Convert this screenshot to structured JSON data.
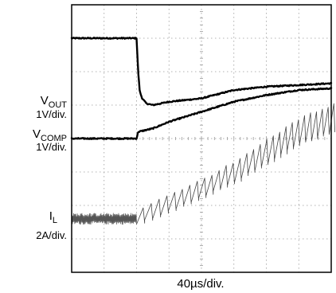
{
  "chart_data": {
    "type": "line",
    "title": "",
    "xlabel": "40µs/div.",
    "ylabel": "",
    "grid": true,
    "x_divisions": 8,
    "y_divisions": 8,
    "x_unit": "µs",
    "x_per_div": 40,
    "xlim": [
      0,
      320
    ],
    "ylim": [
      0,
      8
    ],
    "step_time_us": 80,
    "channels": [
      {
        "key": "vout",
        "label_main": "V",
        "label_sub": "OUT",
        "scale": "1V/div.",
        "points": [
          [
            0,
            7.0
          ],
          [
            78,
            7.0
          ],
          [
            80,
            7.0
          ],
          [
            82,
            6.0
          ],
          [
            84,
            5.4
          ],
          [
            87,
            5.2
          ],
          [
            92,
            5.05
          ],
          [
            100,
            5.0
          ],
          [
            120,
            5.1
          ],
          [
            160,
            5.2
          ],
          [
            200,
            5.45
          ],
          [
            240,
            5.55
          ],
          [
            280,
            5.6
          ],
          [
            320,
            5.65
          ]
        ]
      },
      {
        "key": "vcomp",
        "label_main": "V",
        "label_sub": "COMP",
        "scale": "1V/div.",
        "points": [
          [
            0,
            4.0
          ],
          [
            80,
            4.0
          ],
          [
            82,
            4.2
          ],
          [
            100,
            4.3
          ],
          [
            120,
            4.5
          ],
          [
            160,
            4.8
          ],
          [
            200,
            5.1
          ],
          [
            240,
            5.3
          ],
          [
            280,
            5.45
          ],
          [
            320,
            5.5
          ]
        ]
      },
      {
        "key": "il",
        "label_main": "I",
        "label_sub": "L",
        "scale": "2A/div.",
        "baseline_points": [
          [
            0,
            1.6
          ],
          [
            80,
            1.6
          ]
        ],
        "ripple_base_points": [
          [
            80,
            1.7
          ],
          [
            120,
            2.1
          ],
          [
            160,
            2.55
          ],
          [
            200,
            3.05
          ],
          [
            240,
            3.65
          ],
          [
            280,
            4.25
          ],
          [
            320,
            4.6
          ]
        ],
        "ripple_amplitude_points": [
          [
            80,
            0.25
          ],
          [
            160,
            0.3
          ],
          [
            240,
            0.4
          ],
          [
            320,
            0.45
          ]
        ]
      }
    ]
  }
}
